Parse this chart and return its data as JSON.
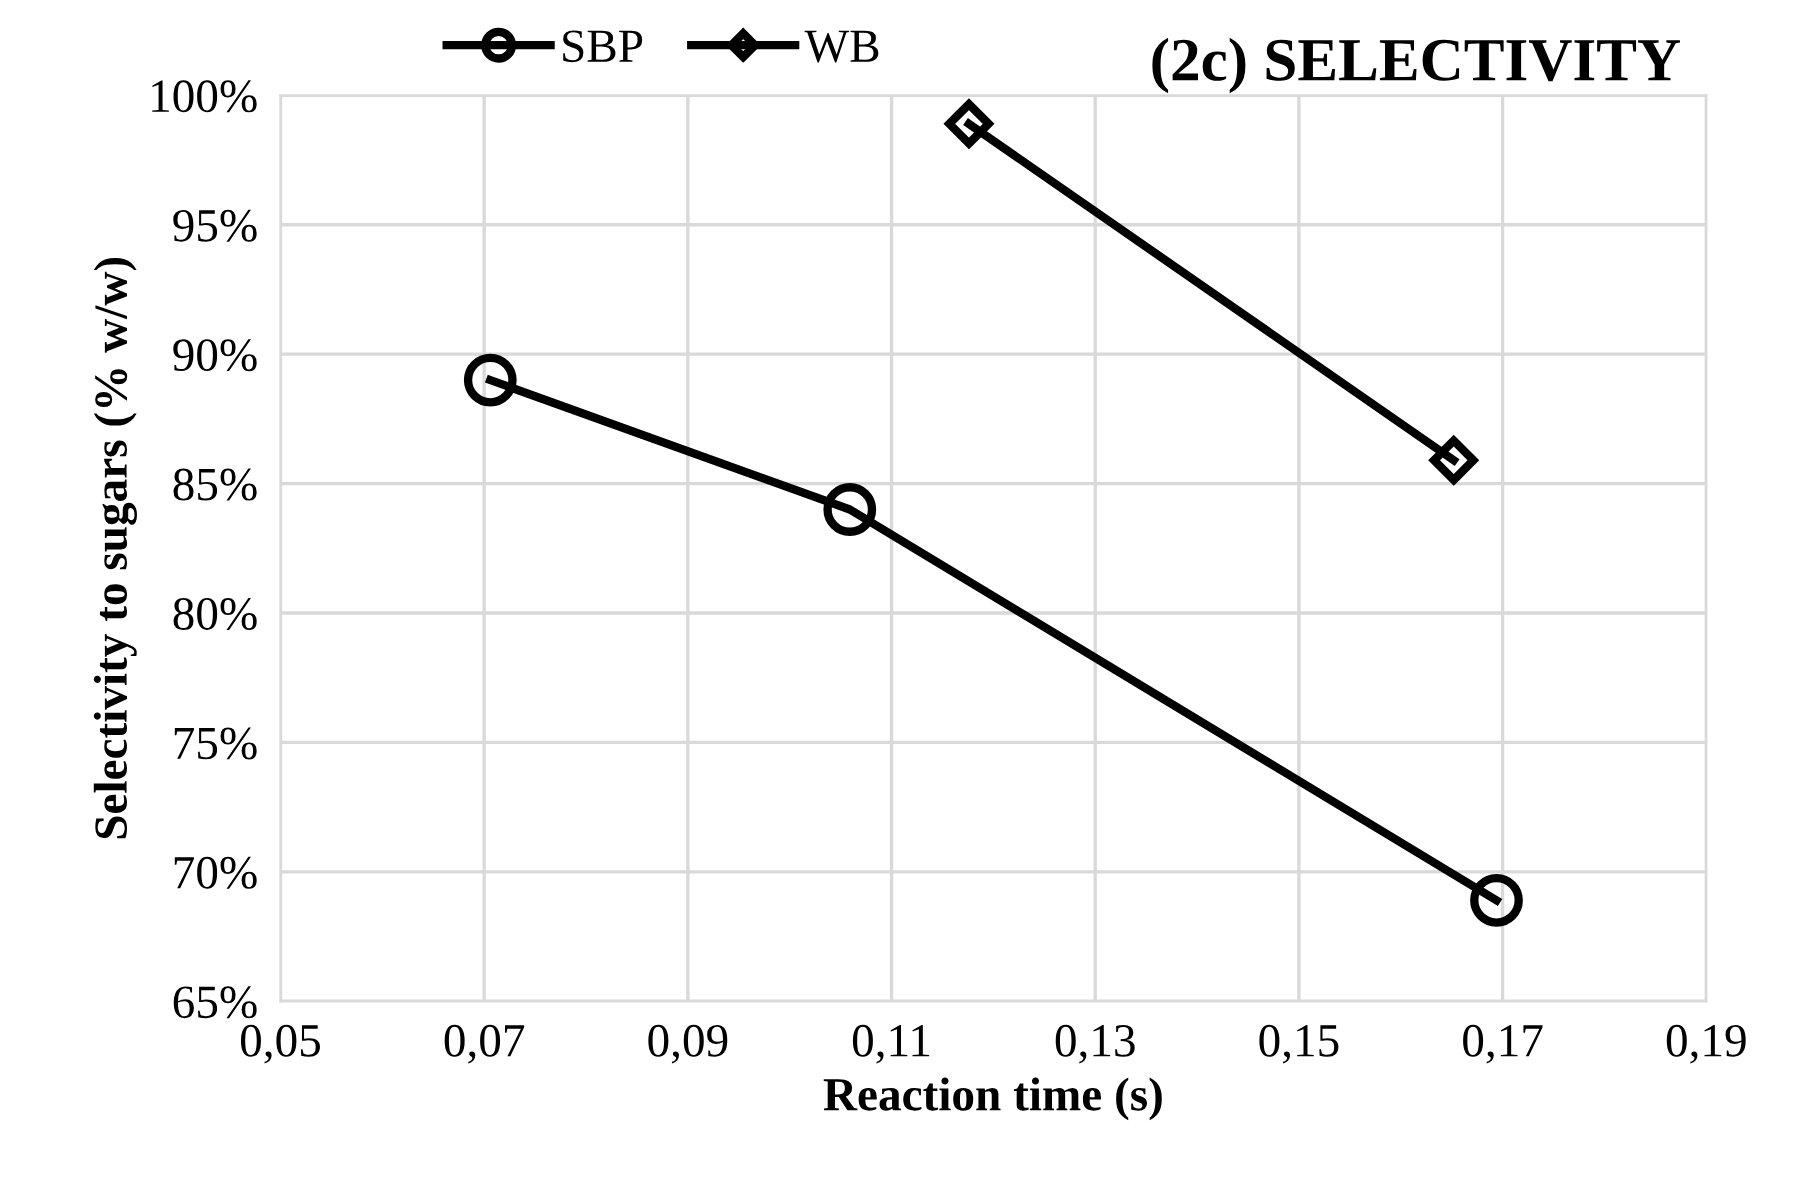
{
  "chart_data": {
    "type": "line",
    "title": "(2c) SELECTIVITY",
    "xlabel": "Reaction time (s)",
    "ylabel": "Selectivity to sugars (% w/w)",
    "series": [
      {
        "name": "SBP",
        "color": "#000000",
        "marker": "circle",
        "x": [
          0.0706,
          0.1059,
          0.1694
        ],
        "values": [
          89.0,
          84.0,
          68.9
        ]
      },
      {
        "name": "WB",
        "color": "#000000",
        "marker": "diamond",
        "x": [
          0.1176,
          0.1652
        ],
        "values": [
          98.9,
          85.9
        ]
      }
    ],
    "xlim": [
      0.05,
      0.19
    ],
    "xticks": [
      {
        "value": 0.05,
        "label": "0,05"
      },
      {
        "value": 0.07,
        "label": "0,07"
      },
      {
        "value": 0.09,
        "label": "0,09"
      },
      {
        "value": 0.11,
        "label": "0,11"
      },
      {
        "value": 0.13,
        "label": "0,13"
      },
      {
        "value": 0.15,
        "label": "0,15"
      },
      {
        "value": 0.17,
        "label": "0,17"
      },
      {
        "value": 0.19,
        "label": "0,19"
      }
    ],
    "ylim": [
      65,
      100
    ],
    "yticks": [
      {
        "value": 65,
        "label": "65%"
      },
      {
        "value": 70,
        "label": "70%"
      },
      {
        "value": 75,
        "label": "75%"
      },
      {
        "value": 80,
        "label": "80%"
      },
      {
        "value": 85,
        "label": "85%"
      },
      {
        "value": 90,
        "label": "90%"
      },
      {
        "value": 95,
        "label": "95%"
      },
      {
        "value": 100,
        "label": "100%"
      }
    ],
    "grid": true,
    "legend": "top left",
    "line_style": "solid"
  }
}
